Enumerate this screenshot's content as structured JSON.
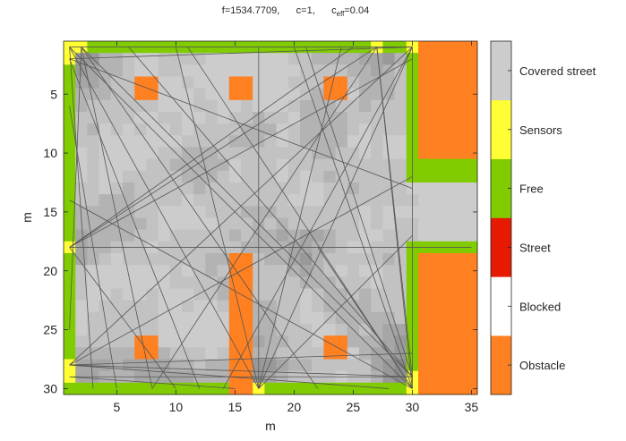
{
  "title": {
    "f_text": "f=1534.7709,",
    "c_text": "c=1,",
    "ceff_prefix": "c",
    "ceff_sub": "eff",
    "ceff_suffix": "=0.04"
  },
  "chart_data": {
    "type": "heatmap",
    "xlabel": "m",
    "ylabel": "m",
    "xlim": [
      0.5,
      35.5
    ],
    "ylim": [
      30.5,
      0.5
    ],
    "y_reversed": true,
    "xticks": [
      5,
      10,
      15,
      20,
      25,
      30,
      35
    ],
    "yticks": [
      5,
      10,
      15,
      20,
      25,
      30
    ],
    "grid": false,
    "colors": {
      "obstacle": "#FF8020",
      "blocked": "#FFFFFF",
      "street": "#E61A00",
      "free": "#80CC00",
      "sensors": "#FFFF33",
      "covered_street": "#CCCCCC",
      "ray": "#555555"
    },
    "colorbar": [
      {
        "label": "Obstacle",
        "color": "#FF8020"
      },
      {
        "label": "Blocked",
        "color": "#FFFFFF"
      },
      {
        "label": "Street",
        "color": "#E61A00"
      },
      {
        "label": "Free",
        "color": "#80CC00"
      },
      {
        "label": "Sensors",
        "color": "#FFFF33"
      },
      {
        "label": "Covered street",
        "color": "#CCCCCC"
      }
    ],
    "regions": {
      "obstacles": [
        {
          "x": [
            31,
            35
          ],
          "y": [
            1,
            10
          ]
        },
        {
          "x": [
            31,
            35
          ],
          "y": [
            19,
            30
          ]
        },
        {
          "x": [
            15,
            16
          ],
          "y": [
            19,
            30
          ]
        },
        {
          "x": [
            7,
            8
          ],
          "y": [
            4,
            5
          ]
        },
        {
          "x": [
            15,
            16
          ],
          "y": [
            4,
            5
          ]
        },
        {
          "x": [
            23,
            24
          ],
          "y": [
            4,
            5
          ]
        },
        {
          "x": [
            7,
            8
          ],
          "y": [
            26,
            27
          ]
        },
        {
          "x": [
            23,
            24
          ],
          "y": [
            26,
            27
          ]
        }
      ],
      "free": [
        {
          "x": [
            1,
            30
          ],
          "y": [
            1,
            1
          ]
        },
        {
          "x": [
            1,
            30
          ],
          "y": [
            30,
            30
          ]
        },
        {
          "x": [
            1,
            1
          ],
          "y": [
            1,
            30
          ]
        },
        {
          "x": [
            30,
            30
          ],
          "y": [
            1,
            12
          ]
        },
        {
          "x": [
            30,
            30
          ],
          "y": [
            18,
            30
          ]
        },
        {
          "x": [
            31,
            35
          ],
          "y": [
            11,
            12
          ]
        },
        {
          "x": [
            31,
            35
          ],
          "y": [
            18,
            18
          ]
        }
      ],
      "sensors": [
        {
          "x": 1,
          "y": 1
        },
        {
          "x": 1,
          "y": 2
        },
        {
          "x": 2,
          "y": 1
        },
        {
          "x": 27,
          "y": 1
        },
        {
          "x": 30,
          "y": 1
        },
        {
          "x": 1,
          "y": 18
        },
        {
          "x": 1,
          "y": 28
        },
        {
          "x": 1,
          "y": 29
        },
        {
          "x": 17,
          "y": 30
        },
        {
          "x": 30,
          "y": 30
        },
        {
          "x": 30,
          "y": 29
        }
      ]
    },
    "rays": [
      [
        [
          1,
          1
        ],
        [
          30,
          1
        ]
      ],
      [
        [
          1,
          1
        ],
        [
          30,
          30
        ]
      ],
      [
        [
          1,
          1
        ],
        [
          17,
          30
        ]
      ],
      [
        [
          1,
          1
        ],
        [
          3,
          30
        ]
      ],
      [
        [
          2,
          1
        ],
        [
          30,
          29
        ]
      ],
      [
        [
          2,
          1
        ],
        [
          8,
          30
        ]
      ],
      [
        [
          2,
          1
        ],
        [
          22,
          30
        ]
      ],
      [
        [
          2,
          1
        ],
        [
          1,
          25
        ]
      ],
      [
        [
          1,
          2
        ],
        [
          30,
          13
        ]
      ],
      [
        [
          1,
          2
        ],
        [
          30,
          1
        ]
      ],
      [
        [
          1,
          2
        ],
        [
          12,
          30
        ]
      ],
      [
        [
          27,
          1
        ],
        [
          1,
          18
        ]
      ],
      [
        [
          27,
          1
        ],
        [
          8,
          30
        ]
      ],
      [
        [
          27,
          1
        ],
        [
          30,
          30
        ]
      ],
      [
        [
          30,
          1
        ],
        [
          1,
          28
        ]
      ],
      [
        [
          30,
          1
        ],
        [
          14,
          30
        ]
      ],
      [
        [
          30,
          1
        ],
        [
          30,
          30
        ]
      ],
      [
        [
          30,
          1
        ],
        [
          17,
          30
        ]
      ],
      [
        [
          1,
          18
        ],
        [
          35,
          18
        ]
      ],
      [
        [
          1,
          18
        ],
        [
          30,
          2
        ]
      ],
      [
        [
          1,
          18
        ],
        [
          25,
          1
        ]
      ],
      [
        [
          1,
          18
        ],
        [
          10,
          30
        ]
      ],
      [
        [
          1,
          28
        ],
        [
          30,
          12
        ]
      ],
      [
        [
          1,
          28
        ],
        [
          28,
          30
        ]
      ],
      [
        [
          1,
          28
        ],
        [
          30,
          27
        ]
      ],
      [
        [
          1,
          29
        ],
        [
          30,
          29
        ]
      ],
      [
        [
          1,
          29
        ],
        [
          15,
          30
        ]
      ],
      [
        [
          1,
          6
        ],
        [
          5,
          30
        ]
      ],
      [
        [
          17,
          30
        ],
        [
          17,
          1
        ]
      ],
      [
        [
          17,
          30
        ],
        [
          10,
          1
        ]
      ],
      [
        [
          17,
          30
        ],
        [
          30,
          17
        ]
      ],
      [
        [
          17,
          30
        ],
        [
          24,
          1
        ]
      ],
      [
        [
          30,
          30
        ],
        [
          11,
          1
        ]
      ],
      [
        [
          30,
          30
        ],
        [
          22,
          18
        ]
      ],
      [
        [
          30,
          30
        ],
        [
          20,
          1
        ]
      ],
      [
        [
          30,
          30
        ],
        [
          1,
          14
        ]
      ],
      [
        [
          30,
          29
        ],
        [
          21,
          1
        ]
      ],
      [
        [
          30,
          29
        ],
        [
          1,
          28
        ]
      ],
      [
        [
          30,
          29
        ],
        [
          6,
          1
        ]
      ],
      [
        [
          30,
          29
        ],
        [
          27,
          1
        ]
      ]
    ]
  }
}
